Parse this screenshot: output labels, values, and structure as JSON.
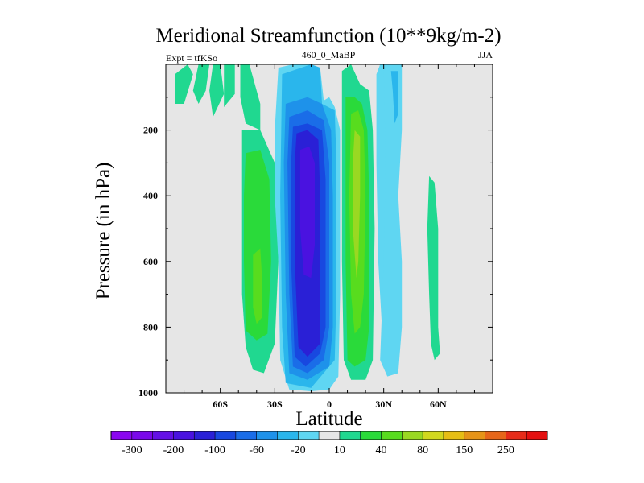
{
  "chart_data": {
    "type": "contour",
    "title": "Meridional Streamfunction (10**9kg/m-2)",
    "left_label": "Expt = tfKSo",
    "center_label": "460_0_MaBP",
    "right_label": "JJA",
    "xlabel": "Latitude",
    "ylabel": "Pressure (in hPa)",
    "xlim": [
      -90,
      90
    ],
    "ylim": [
      1000,
      0
    ],
    "xticks": [
      -60,
      -30,
      0,
      30,
      60
    ],
    "xtick_labels": [
      "60S",
      "30S",
      "0",
      "30N",
      "60N"
    ],
    "yticks": [
      200,
      400,
      600,
      800,
      1000
    ],
    "ytick_labels": [
      "200",
      "400",
      "600",
      "800",
      "1000"
    ],
    "background_color": "#e6e6e6",
    "colorbar": {
      "levels": [
        -300,
        -250,
        -200,
        -150,
        -100,
        -80,
        -60,
        -40,
        -20,
        -10,
        10,
        20,
        40,
        60,
        80,
        100,
        150,
        200,
        250,
        300
      ],
      "labels": [
        "-300",
        "-200",
        "-100",
        "-60",
        "-20",
        "10",
        "40",
        "80",
        "150",
        "250"
      ],
      "colors": [
        "#8a06f0",
        "#7a08ea",
        "#6410e6",
        "#4a12e0",
        "#2a20d6",
        "#1848e0",
        "#1a6de8",
        "#1e92ea",
        "#2ab6ec",
        "#5fd6f2",
        "#e6e6e6",
        "#20d890",
        "#2ada3a",
        "#58dc1e",
        "#9ad822",
        "#d2d81e",
        "#e6be14",
        "#e69418",
        "#e6661a",
        "#e62c1a",
        "#e41010"
      ]
    },
    "filled_regions": [
      {
        "level": 10,
        "color": "#20d890",
        "points": [
          [
            -85,
            30
          ],
          [
            -78,
            0
          ],
          [
            -75,
            30
          ],
          [
            -80,
            120
          ],
          [
            -85,
            120
          ]
        ]
      },
      {
        "level": 10,
        "color": "#20d890",
        "points": [
          [
            -72,
            0
          ],
          [
            -66,
            0
          ],
          [
            -68,
            80
          ],
          [
            -72,
            120
          ],
          [
            -75,
            80
          ]
        ]
      },
      {
        "level": 10,
        "color": "#20d890",
        "points": [
          [
            -64,
            0
          ],
          [
            -60,
            0
          ],
          [
            -58,
            90
          ],
          [
            -64,
            160
          ],
          [
            -66,
            80
          ]
        ]
      },
      {
        "level": 10,
        "color": "#20d890",
        "points": [
          [
            -58,
            0
          ],
          [
            -52,
            0
          ],
          [
            -52,
            90
          ],
          [
            -58,
            130
          ]
        ]
      },
      {
        "level": 10,
        "color": "#20d890",
        "points": [
          [
            -49,
            0
          ],
          [
            -44,
            0
          ],
          [
            -38,
            120
          ],
          [
            -38,
            200
          ],
          [
            -46,
            180
          ],
          [
            -49,
            100
          ]
        ]
      },
      {
        "level": 10,
        "color": "#20d890",
        "points": [
          [
            -48,
            200
          ],
          [
            -38,
            200
          ],
          [
            -30,
            300
          ],
          [
            -28,
            600
          ],
          [
            -30,
            850
          ],
          [
            -36,
            940
          ],
          [
            -42,
            930
          ],
          [
            -46,
            860
          ],
          [
            -48,
            700
          ],
          [
            -48,
            400
          ]
        ]
      },
      {
        "level": 20,
        "color": "#2ada3a",
        "points": [
          [
            -46,
            270
          ],
          [
            -38,
            260
          ],
          [
            -33,
            350
          ],
          [
            -32,
            600
          ],
          [
            -34,
            820
          ],
          [
            -40,
            840
          ],
          [
            -46,
            810
          ],
          [
            -47,
            600
          ],
          [
            -47,
            400
          ]
        ]
      },
      {
        "level": 40,
        "color": "#58dc1e",
        "points": [
          [
            -42,
            580
          ],
          [
            -38,
            560
          ],
          [
            -37,
            650
          ],
          [
            -37,
            770
          ],
          [
            -40,
            790
          ],
          [
            -42,
            740
          ]
        ]
      },
      {
        "level": -10,
        "color": "#5fd6f2",
        "points": [
          [
            -28,
            10
          ],
          [
            -20,
            0
          ],
          [
            -10,
            0
          ],
          [
            -5,
            10
          ],
          [
            -3,
            110
          ],
          [
            0,
            100
          ],
          [
            3,
            130
          ],
          [
            6,
            200
          ],
          [
            6,
            700
          ],
          [
            5,
            950
          ],
          [
            0,
            990
          ],
          [
            -10,
            995
          ],
          [
            -22,
            990
          ],
          [
            -27,
            900
          ],
          [
            -28,
            600
          ],
          [
            -30,
            400
          ],
          [
            -30,
            200
          ]
        ]
      },
      {
        "level": -20,
        "color": "#2ab6ec",
        "points": [
          [
            -26,
            30
          ],
          [
            -10,
            0
          ],
          [
            -5,
            10
          ],
          [
            -4,
            120
          ],
          [
            3,
            140
          ],
          [
            4,
            300
          ],
          [
            4,
            700
          ],
          [
            3,
            900
          ],
          [
            -10,
            985
          ],
          [
            -24,
            970
          ],
          [
            -26,
            800
          ],
          [
            -27,
            400
          ]
        ]
      },
      {
        "level": -40,
        "color": "#1e92ea",
        "points": [
          [
            -24,
            120
          ],
          [
            -12,
            100
          ],
          [
            -4,
            120
          ],
          [
            1,
            200
          ],
          [
            2,
            400
          ],
          [
            2,
            800
          ],
          [
            0,
            920
          ],
          [
            -12,
            960
          ],
          [
            -22,
            940
          ],
          [
            -24,
            700
          ],
          [
            -25,
            300
          ]
        ]
      },
      {
        "level": -60,
        "color": "#1a6de8",
        "points": [
          [
            -22,
            160
          ],
          [
            -12,
            140
          ],
          [
            -3,
            170
          ],
          [
            0,
            300
          ],
          [
            0,
            800
          ],
          [
            -3,
            900
          ],
          [
            -12,
            940
          ],
          [
            -20,
            920
          ],
          [
            -22,
            700
          ],
          [
            -23,
            300
          ]
        ]
      },
      {
        "level": -80,
        "color": "#1848e0",
        "points": [
          [
            -20,
            190
          ],
          [
            -12,
            180
          ],
          [
            -4,
            200
          ],
          [
            -2,
            350
          ],
          [
            -2,
            800
          ],
          [
            -5,
            880
          ],
          [
            -13,
            920
          ],
          [
            -19,
            890
          ],
          [
            -21,
            600
          ],
          [
            -21,
            300
          ]
        ]
      },
      {
        "level": -100,
        "color": "#2a20d6",
        "points": [
          [
            -18,
            210
          ],
          [
            -12,
            200
          ],
          [
            -6,
            230
          ],
          [
            -5,
            400
          ],
          [
            -5,
            850
          ],
          [
            -12,
            890
          ],
          [
            -17,
            860
          ],
          [
            -19,
            600
          ],
          [
            -19,
            300
          ]
        ]
      },
      {
        "level": -150,
        "color": "#4a12e0",
        "points": [
          [
            -16,
            260
          ],
          [
            -11,
            250
          ],
          [
            -8,
            300
          ],
          [
            -8,
            550
          ],
          [
            -10,
            650
          ],
          [
            -14,
            640
          ],
          [
            -16,
            500
          ]
        ]
      },
      {
        "level": 10,
        "color": "#20d890",
        "points": [
          [
            7,
            20
          ],
          [
            12,
            0
          ],
          [
            17,
            60
          ],
          [
            22,
            80
          ],
          [
            24,
            200
          ],
          [
            25,
            500
          ],
          [
            24,
            900
          ],
          [
            20,
            960
          ],
          [
            12,
            960
          ],
          [
            8,
            900
          ],
          [
            7,
            600
          ],
          [
            7,
            200
          ]
        ]
      },
      {
        "level": 20,
        "color": "#2ada3a",
        "points": [
          [
            9,
            100
          ],
          [
            14,
            100
          ],
          [
            18,
            120
          ],
          [
            21,
            200
          ],
          [
            22,
            400
          ],
          [
            22,
            800
          ],
          [
            20,
            900
          ],
          [
            14,
            920
          ],
          [
            10,
            900
          ],
          [
            9,
            600
          ],
          [
            9,
            300
          ]
        ]
      },
      {
        "level": 40,
        "color": "#58dc1e",
        "points": [
          [
            12,
            150
          ],
          [
            16,
            140
          ],
          [
            19,
            200
          ],
          [
            20,
            400
          ],
          [
            19,
            700
          ],
          [
            17,
            800
          ],
          [
            14,
            820
          ],
          [
            12,
            700
          ],
          [
            11,
            400
          ]
        ]
      },
      {
        "level": 60,
        "color": "#9ad822",
        "points": [
          [
            14,
            200
          ],
          [
            17,
            220
          ],
          [
            17,
            400
          ],
          [
            16,
            600
          ],
          [
            15,
            650
          ],
          [
            13,
            500
          ],
          [
            13,
            300
          ]
        ]
      },
      {
        "level": -10,
        "color": "#5fd6f2",
        "points": [
          [
            26,
            30
          ],
          [
            28,
            0
          ],
          [
            34,
            0
          ],
          [
            36,
            100
          ],
          [
            33,
            160
          ],
          [
            34,
            300
          ],
          [
            33,
            500
          ],
          [
            33,
            700
          ],
          [
            32,
            850
          ],
          [
            30,
            900
          ],
          [
            27,
            600
          ],
          [
            26,
            300
          ]
        ]
      },
      {
        "level": -10,
        "color": "#5fd6f2",
        "points": [
          [
            30,
            0
          ],
          [
            40,
            0
          ],
          [
            40,
            200
          ],
          [
            38,
            400
          ],
          [
            40,
            600
          ],
          [
            40,
            800
          ],
          [
            38,
            940
          ],
          [
            32,
            950
          ],
          [
            28,
            900
          ],
          [
            30,
            600
          ],
          [
            31,
            300
          ]
        ]
      },
      {
        "level": -20,
        "color": "#2ab6ec",
        "points": [
          [
            34,
            20
          ],
          [
            38,
            20
          ],
          [
            38,
            150
          ],
          [
            36,
            180
          ],
          [
            35,
            80
          ]
        ]
      },
      {
        "level": 10,
        "color": "#20d890",
        "points": [
          [
            55,
            340
          ],
          [
            58,
            360
          ],
          [
            60,
            500
          ],
          [
            60,
            800
          ],
          [
            61,
            880
          ],
          [
            58,
            900
          ],
          [
            56,
            850
          ],
          [
            55,
            700
          ],
          [
            54,
            500
          ]
        ]
      }
    ]
  }
}
